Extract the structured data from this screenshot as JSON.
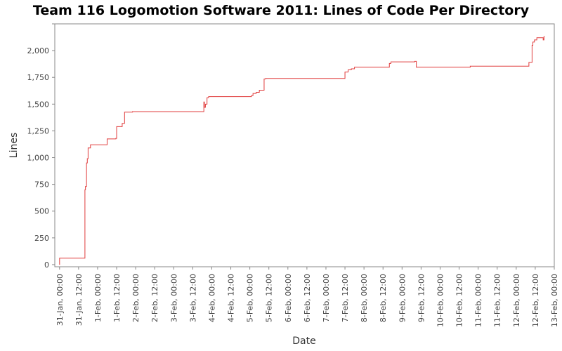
{
  "chart_data": {
    "type": "line",
    "title": "Team 116 Logomotion Software 2011: Lines of Code Per Directory",
    "xlabel": "Date",
    "ylabel": "Lines",
    "x_axis": {
      "min": "2011-01-30T21:00",
      "max": "2011-02-13T00:00",
      "ticks": [
        {
          "t": "2011-01-31T00:00",
          "label": "31-Jan, 00:00"
        },
        {
          "t": "2011-01-31T12:00",
          "label": "31-Jan, 12:00"
        },
        {
          "t": "2011-02-01T00:00",
          "label": "1-Feb, 00:00"
        },
        {
          "t": "2011-02-01T12:00",
          "label": "1-Feb, 12:00"
        },
        {
          "t": "2011-02-02T00:00",
          "label": "2-Feb, 00:00"
        },
        {
          "t": "2011-02-02T12:00",
          "label": "2-Feb, 12:00"
        },
        {
          "t": "2011-02-03T00:00",
          "label": "3-Feb, 00:00"
        },
        {
          "t": "2011-02-03T12:00",
          "label": "3-Feb, 12:00"
        },
        {
          "t": "2011-02-04T00:00",
          "label": "4-Feb, 00:00"
        },
        {
          "t": "2011-02-04T12:00",
          "label": "4-Feb, 12:00"
        },
        {
          "t": "2011-02-05T00:00",
          "label": "5-Feb, 00:00"
        },
        {
          "t": "2011-02-05T12:00",
          "label": "5-Feb, 12:00"
        },
        {
          "t": "2011-02-06T00:00",
          "label": "6-Feb, 00:00"
        },
        {
          "t": "2011-02-06T12:00",
          "label": "6-Feb, 12:00"
        },
        {
          "t": "2011-02-07T00:00",
          "label": "7-Feb, 00:00"
        },
        {
          "t": "2011-02-07T12:00",
          "label": "7-Feb, 12:00"
        },
        {
          "t": "2011-02-08T00:00",
          "label": "8-Feb, 00:00"
        },
        {
          "t": "2011-02-08T12:00",
          "label": "8-Feb, 12:00"
        },
        {
          "t": "2011-02-09T00:00",
          "label": "9-Feb, 00:00"
        },
        {
          "t": "2011-02-09T12:00",
          "label": "9-Feb, 12:00"
        },
        {
          "t": "2011-02-10T00:00",
          "label": "10-Feb, 00:00"
        },
        {
          "t": "2011-02-10T12:00",
          "label": "10-Feb, 12:00"
        },
        {
          "t": "2011-02-11T00:00",
          "label": "11-Feb, 00:00"
        },
        {
          "t": "2011-02-11T12:00",
          "label": "11-Feb, 12:00"
        },
        {
          "t": "2011-02-12T00:00",
          "label": "12-Feb, 00:00"
        },
        {
          "t": "2011-02-12T12:00",
          "label": "12-Feb, 12:00"
        },
        {
          "t": "2011-02-13T00:00",
          "label": "13-Feb, 00:00"
        }
      ]
    },
    "y_axis": {
      "min": -20,
      "max": 2250,
      "ticks": [
        {
          "v": 0,
          "label": "0"
        },
        {
          "v": 250,
          "label": "250"
        },
        {
          "v": 500,
          "label": "500"
        },
        {
          "v": 750,
          "label": "750"
        },
        {
          "v": 1000,
          "label": "1,000"
        },
        {
          "v": 1250,
          "label": "1,250"
        },
        {
          "v": 1500,
          "label": "1,500"
        },
        {
          "v": 1750,
          "label": "1,750"
        },
        {
          "v": 2000,
          "label": "2,000"
        },
        {
          "v": 2250,
          "label": ""
        }
      ]
    },
    "grid": false,
    "legend": "none",
    "series": [
      {
        "color": "#e03c3c",
        "step": true,
        "points": [
          {
            "x": "2011-01-31T00:00",
            "y": 0
          },
          {
            "x": "2011-01-31T00:01",
            "y": 60
          },
          {
            "x": "2011-01-31T16:00",
            "y": 700
          },
          {
            "x": "2011-01-31T16:20",
            "y": 730
          },
          {
            "x": "2011-01-31T17:00",
            "y": 950
          },
          {
            "x": "2011-01-31T17:30",
            "y": 990
          },
          {
            "x": "2011-01-31T18:00",
            "y": 1090
          },
          {
            "x": "2011-01-31T19:30",
            "y": 1120
          },
          {
            "x": "2011-02-01T06:00",
            "y": 1175
          },
          {
            "x": "2011-02-01T11:30",
            "y": 1180
          },
          {
            "x": "2011-02-01T12:00",
            "y": 1290
          },
          {
            "x": "2011-02-01T15:30",
            "y": 1320
          },
          {
            "x": "2011-02-01T17:00",
            "y": 1425
          },
          {
            "x": "2011-02-01T22:00",
            "y": 1430
          },
          {
            "x": "2011-02-03T19:00",
            "y": 1520
          },
          {
            "x": "2011-02-03T19:20",
            "y": 1470
          },
          {
            "x": "2011-02-03T20:00",
            "y": 1500
          },
          {
            "x": "2011-02-03T21:00",
            "y": 1560
          },
          {
            "x": "2011-02-03T22:00",
            "y": 1570
          },
          {
            "x": "2011-02-05T01:00",
            "y": 1580
          },
          {
            "x": "2011-02-05T02:00",
            "y": 1600
          },
          {
            "x": "2011-02-05T04:00",
            "y": 1610
          },
          {
            "x": "2011-02-05T06:00",
            "y": 1630
          },
          {
            "x": "2011-02-05T09:00",
            "y": 1735
          },
          {
            "x": "2011-02-05T10:00",
            "y": 1740
          },
          {
            "x": "2011-02-07T12:00",
            "y": 1800
          },
          {
            "x": "2011-02-07T14:00",
            "y": 1820
          },
          {
            "x": "2011-02-07T16:00",
            "y": 1830
          },
          {
            "x": "2011-02-07T18:00",
            "y": 1845
          },
          {
            "x": "2011-02-08T16:00",
            "y": 1880
          },
          {
            "x": "2011-02-08T17:00",
            "y": 1895
          },
          {
            "x": "2011-02-09T08:00",
            "y": 1900
          },
          {
            "x": "2011-02-09T09:00",
            "y": 1845
          },
          {
            "x": "2011-02-10T19:00",
            "y": 1855
          },
          {
            "x": "2011-02-12T08:00",
            "y": 1890
          },
          {
            "x": "2011-02-12T10:00",
            "y": 2050
          },
          {
            "x": "2011-02-12T10:30",
            "y": 2080
          },
          {
            "x": "2011-02-12T11:30",
            "y": 2100
          },
          {
            "x": "2011-02-12T13:00",
            "y": 2120
          },
          {
            "x": "2011-02-12T17:00",
            "y": 2100
          },
          {
            "x": "2011-02-12T17:30",
            "y": 2130
          },
          {
            "x": "2011-02-12T18:00",
            "y": 2130
          }
        ]
      }
    ]
  }
}
